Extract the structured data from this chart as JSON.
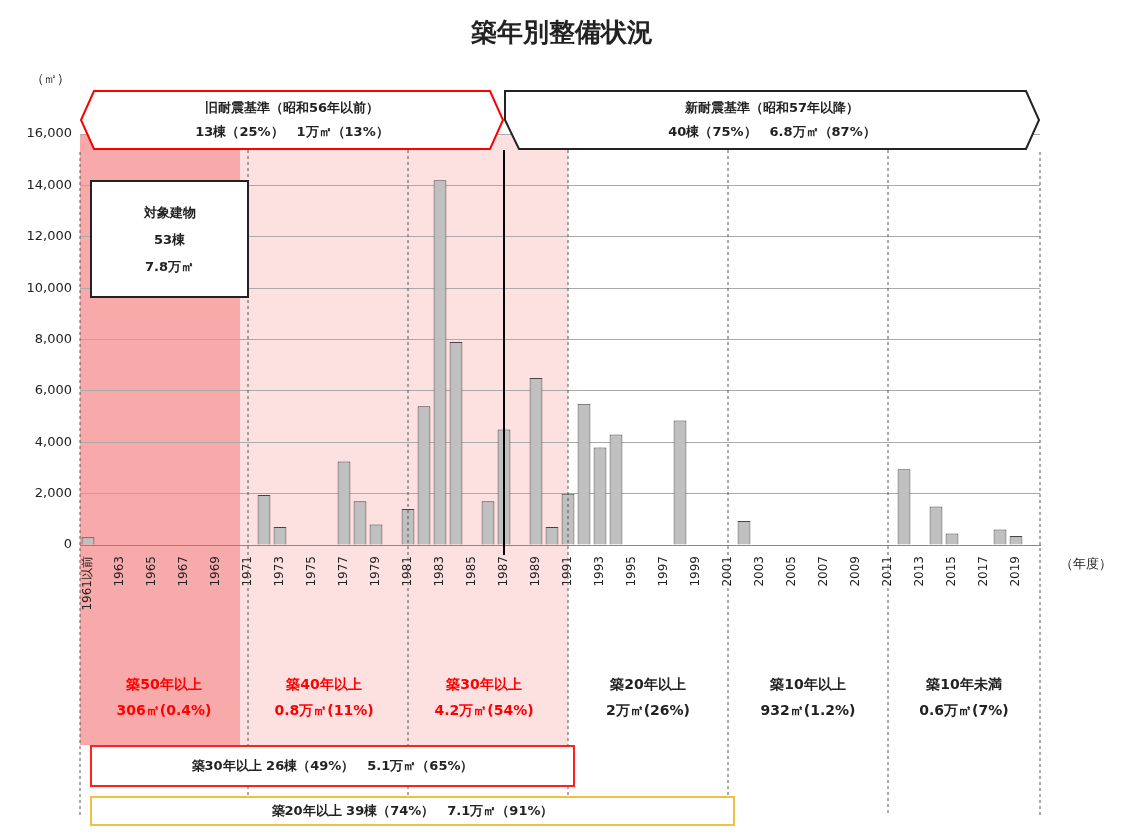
{
  "chart_data": {
    "type": "bar",
    "title": "築年別整備状況",
    "ylabel": "（㎡）",
    "xlabel": "（年度）",
    "categories": [
      "1961以前",
      null,
      "1963",
      null,
      "1965",
      null,
      "1967",
      null,
      "1969",
      null,
      "1971",
      null,
      "1973",
      null,
      "1975",
      null,
      "1977",
      null,
      "1979",
      null,
      "1981",
      null,
      "1983",
      null,
      "1985",
      null,
      "1987",
      null,
      "1989",
      null,
      "1991",
      null,
      "1993",
      null,
      "1995",
      null,
      "1997",
      null,
      "1999",
      null,
      "2001",
      null,
      "2003",
      null,
      "2005",
      null,
      "2007",
      null,
      "2009",
      null,
      "2011",
      null,
      "2013",
      null,
      "2015",
      null,
      "2017",
      null,
      "2019",
      null
    ],
    "values": [
      306,
      null,
      null,
      null,
      null,
      null,
      null,
      null,
      null,
      null,
      null,
      1950,
      700,
      null,
      null,
      null,
      3250,
      1700,
      800,
      null,
      1400,
      5400,
      14200,
      7900,
      null,
      1700,
      4500,
      null,
      6500,
      700,
      2000,
      5500,
      3800,
      4300,
      null,
      null,
      null,
      4850,
      null,
      null,
      null,
      932,
      null,
      null,
      null,
      null,
      null,
      null,
      null,
      null,
      null,
      2950,
      null,
      1500,
      450,
      null,
      null,
      600,
      350,
      null
    ],
    "color": "#c0c0c0",
    "ylim": [
      0,
      16000
    ],
    "yticks": [
      0,
      {
        "value": 2000,
        "label": "2,000"
      },
      {
        "value": 4000,
        "label": "4,000"
      },
      {
        "value": 6000,
        "label": "6,000"
      },
      {
        "value": 8000,
        "label": "8,000"
      },
      {
        "value": 10000,
        "label": "10,000"
      },
      {
        "value": 12000,
        "label": "12,000"
      },
      {
        "value": 14000,
        "label": "14,000"
      },
      {
        "value": 16000,
        "label": "16,000"
      }
    ],
    "grid": "y",
    "bands": [
      {
        "axis": "x",
        "from": "1961以前",
        "to": "1971",
        "label": "築50年以上\n306㎡(0.4%)",
        "color": "#f8aaaa"
      },
      {
        "axis": "x",
        "from": "1971",
        "to": "1981",
        "label": "築40年以上\n0.8万㎡(11%)",
        "color": "#fde1e1"
      },
      {
        "axis": "x",
        "from": "1981",
        "to": "1991",
        "label": "築30年以上\n4.2万㎡(54%)",
        "color": "#fde1e1"
      }
    ],
    "ref_lines": [
      {
        "axis": "x",
        "value": "1987",
        "color": "#000000",
        "line_style": "solid"
      },
      {
        "axis": "x",
        "value": "1971",
        "color": "#555555",
        "line_style": "dotted"
      },
      {
        "axis": "x",
        "value": "1981",
        "color": "#555555",
        "line_style": "dotted"
      },
      {
        "axis": "x",
        "value": "1991",
        "color": "#555555",
        "line_style": "dotted"
      },
      {
        "axis": "x",
        "value": "2001",
        "color": "#555555",
        "line_style": "dotted"
      },
      {
        "axis": "x",
        "value": "2011",
        "color": "#555555",
        "line_style": "dotted"
      }
    ],
    "annotations": [
      "旧耐震基準（昭和56年以前）\n13棟（25%）　1万㎡（13%）",
      "新耐震基準（昭和57年以降）\n40棟（75%）　6.8万㎡（87%）",
      "対象建物\n53棟\n7.8万㎡",
      "築30年以上 26棟（49%）　5.1万㎡（65%）",
      "築20年以上 39棟（74%）　7.1万㎡（91%）",
      "築20年以上\n2万㎡(26%)",
      "築10年以上\n932㎡(1.2%)",
      "築10年未満\n0.6万㎡(7%)"
    ]
  }
}
